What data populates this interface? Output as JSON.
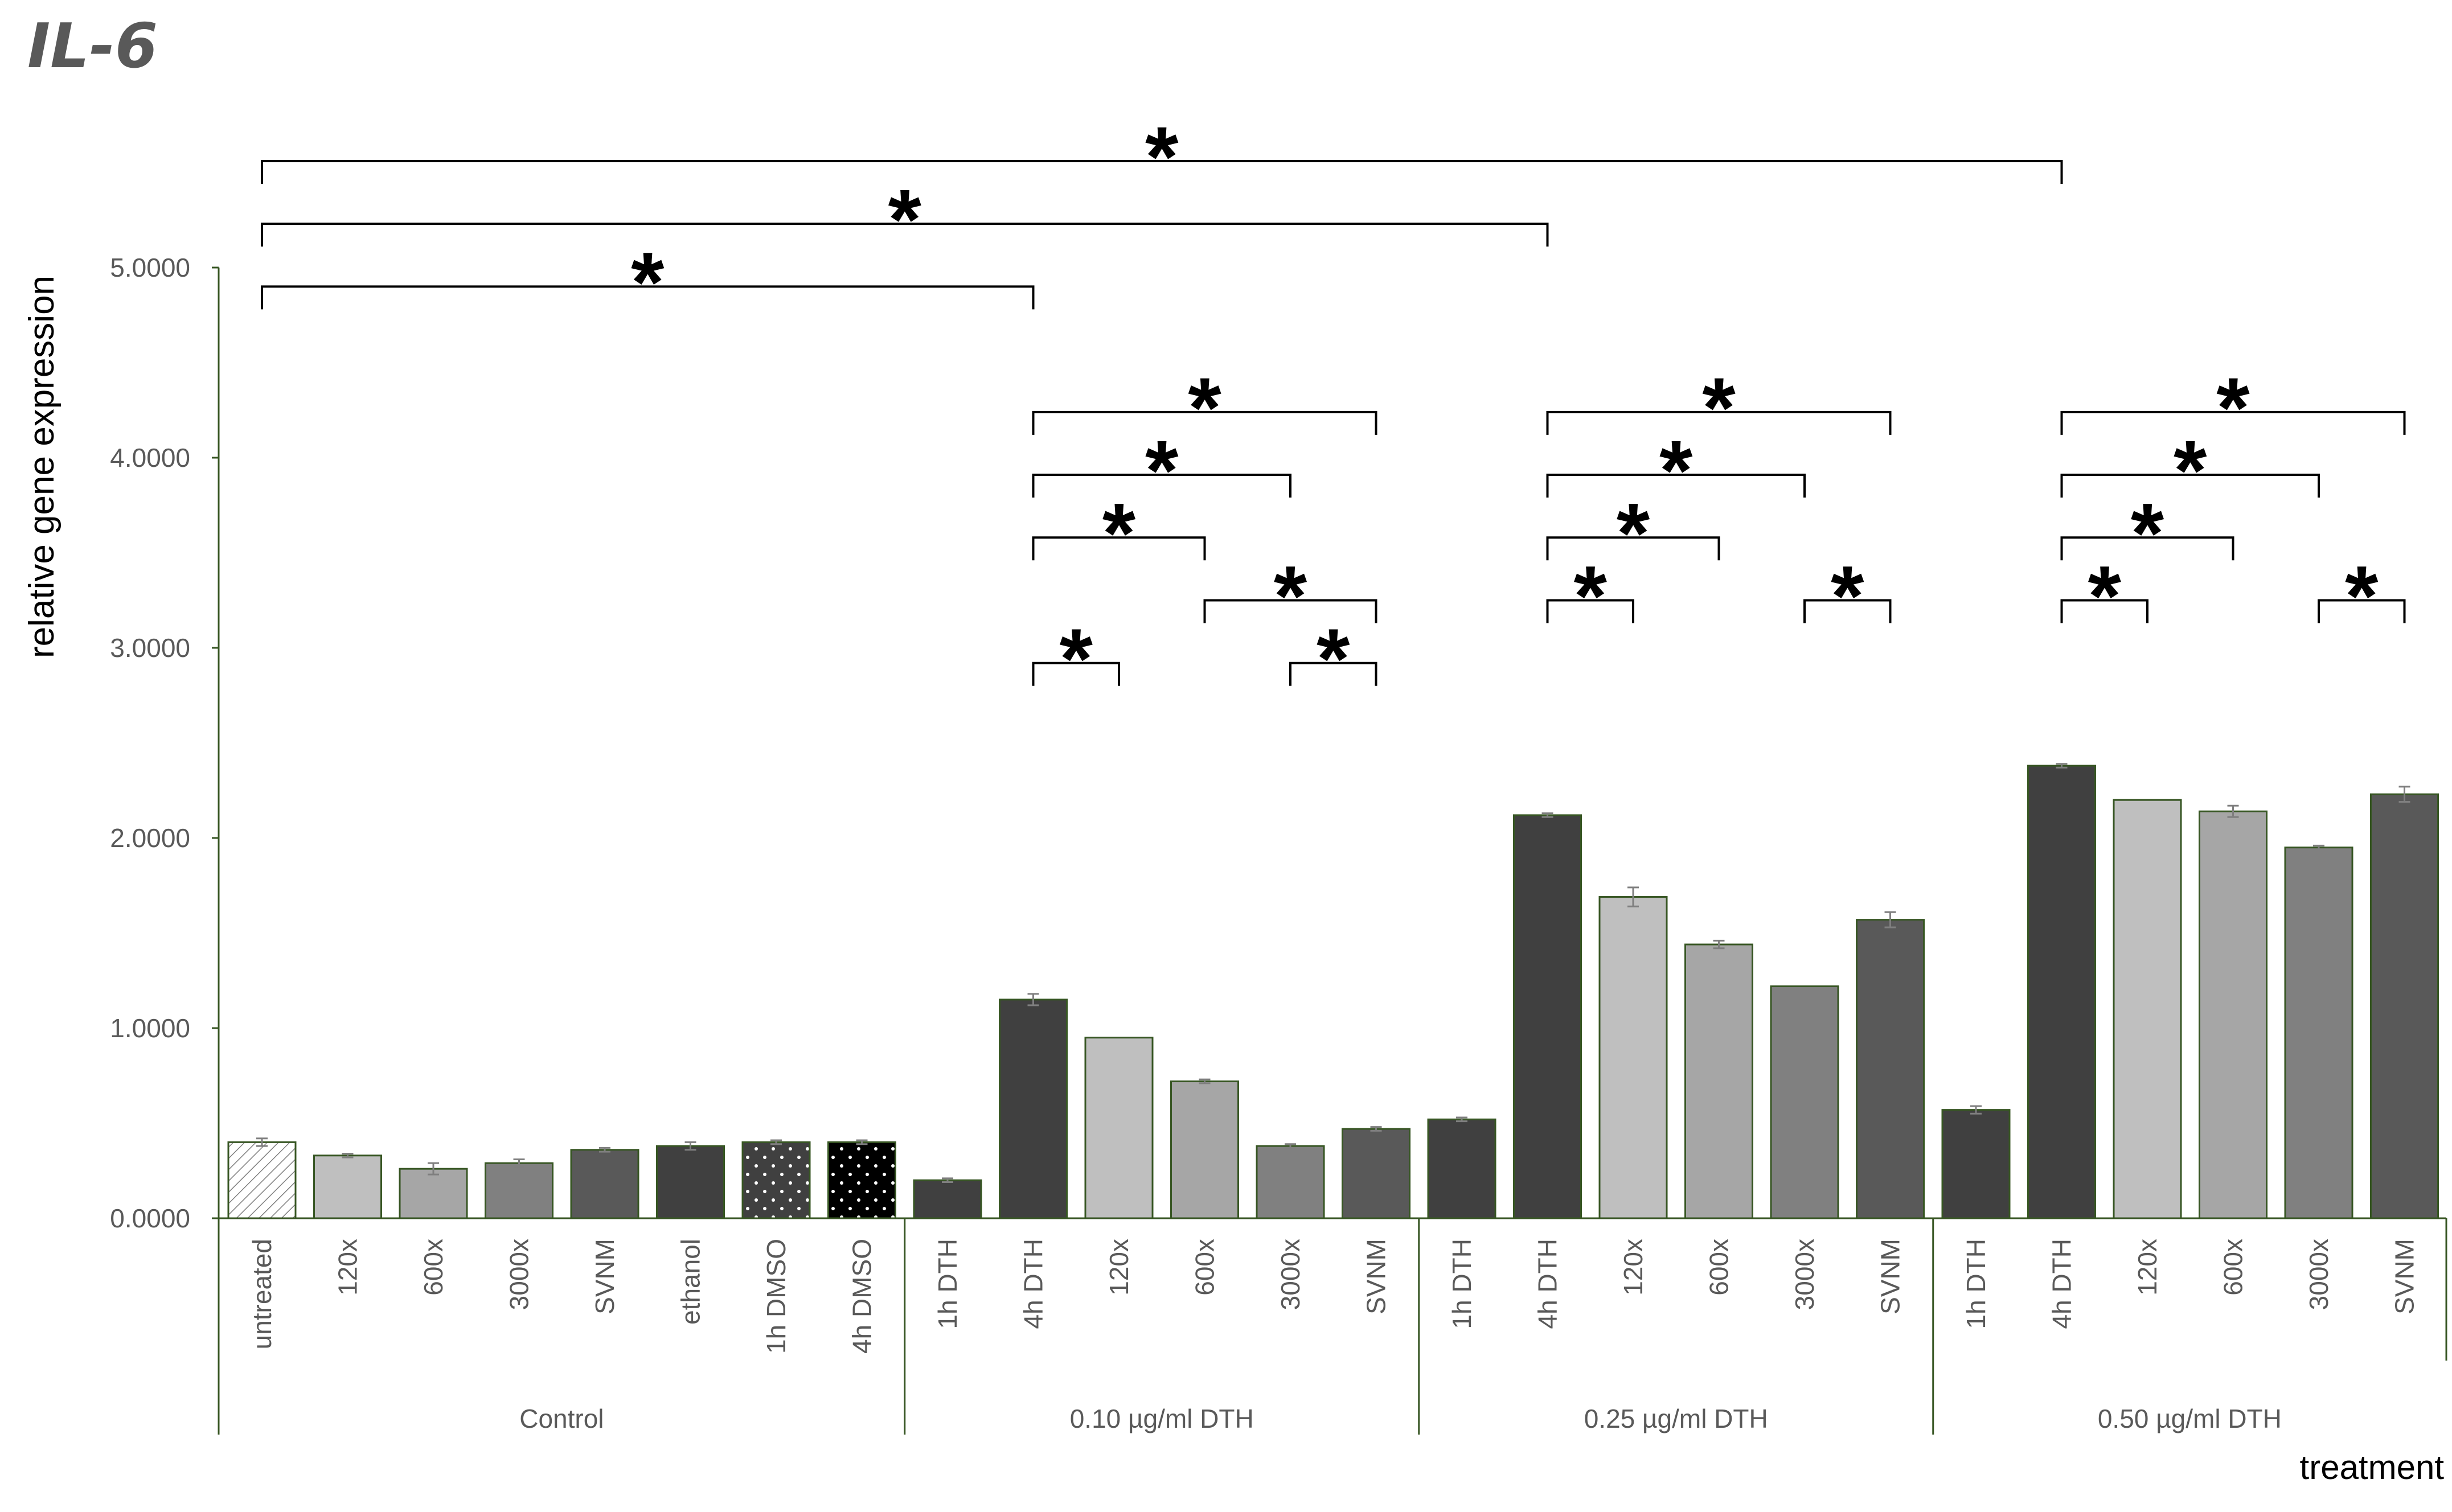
{
  "chart_data": {
    "type": "bar",
    "title": "IL-6",
    "ylabel": "relative gene expression",
    "xlabel": "treatment",
    "ylim": [
      0,
      5
    ],
    "yticks": [
      0,
      1,
      2,
      3,
      4,
      5
    ],
    "ytick_labels": [
      "0.0000",
      "1.0000",
      "2.0000",
      "3.0000",
      "4.0000",
      "5.0000"
    ],
    "grid": false,
    "legend": "none",
    "groups": [
      {
        "name": "Control",
        "categories": [
          "untreated",
          "120x",
          "600x",
          "3000x",
          "SVNM",
          "ethanol",
          "1h DMSO",
          "4h DMSO"
        ]
      },
      {
        "name": "0.10 µg/ml DTH",
        "categories": [
          "1h DTH",
          "4h DTH",
          "120x",
          "600x",
          "3000x",
          "SVNM"
        ]
      },
      {
        "name": "0.25 µg/ml DTH",
        "categories": [
          "1h DTH",
          "4h DTH",
          "120x",
          "600x",
          "3000x",
          "SVNM"
        ]
      },
      {
        "name": "0.50 µg/ml DTH",
        "categories": [
          "1h DTH",
          "4h DTH",
          "120x",
          "600x",
          "3000x",
          "SVNM"
        ]
      }
    ],
    "values": [
      0.4,
      0.33,
      0.26,
      0.29,
      0.36,
      0.38,
      0.4,
      0.4,
      0.2,
      1.15,
      0.95,
      0.72,
      0.38,
      0.47,
      0.52,
      2.12,
      1.69,
      1.44,
      1.22,
      1.57,
      0.57,
      2.38,
      2.2,
      2.14,
      1.95,
      2.23
    ],
    "errors": [
      0.02,
      0.01,
      0.03,
      0.02,
      0.01,
      0.02,
      0.01,
      0.01,
      0.01,
      0.03,
      0.0,
      0.01,
      0.01,
      0.01,
      0.01,
      0.01,
      0.05,
      0.02,
      0.0,
      0.04,
      0.02,
      0.01,
      0.0,
      0.03,
      0.01,
      0.04
    ],
    "bar_fills": [
      "hatch",
      "#bfbfbf",
      "#a6a6a6",
      "#808080",
      "#595959",
      "#404040",
      "dots-gray",
      "dots-black",
      "#404040",
      "#404040",
      "#bfbfbf",
      "#a6a6a6",
      "#808080",
      "#595959",
      "#404040",
      "#404040",
      "#bfbfbf",
      "#a6a6a6",
      "#808080",
      "#595959",
      "#404040",
      "#404040",
      "#bfbfbf",
      "#a6a6a6",
      "#808080",
      "#595959"
    ],
    "significance": [
      {
        "from": 0,
        "to": 21,
        "level": 5.56,
        "label": "*"
      },
      {
        "from": 0,
        "to": 15,
        "level": 5.23,
        "label": "*"
      },
      {
        "from": 0,
        "to": 9,
        "level": 4.9,
        "label": "*"
      },
      {
        "from": 9,
        "to": 13,
        "level": 4.24,
        "label": "*"
      },
      {
        "from": 9,
        "to": 12,
        "level": 3.91,
        "label": "*"
      },
      {
        "from": 9,
        "to": 11,
        "level": 3.58,
        "label": "*"
      },
      {
        "from": 11,
        "to": 13,
        "level": 3.25,
        "label": "*"
      },
      {
        "from": 9,
        "to": 10,
        "level": 2.92,
        "label": "*"
      },
      {
        "from": 12,
        "to": 13,
        "level": 2.92,
        "label": "*"
      },
      {
        "from": 15,
        "to": 19,
        "level": 4.24,
        "label": "*"
      },
      {
        "from": 15,
        "to": 18,
        "level": 3.91,
        "label": "*"
      },
      {
        "from": 15,
        "to": 17,
        "level": 3.58,
        "label": "*"
      },
      {
        "from": 15,
        "to": 16,
        "level": 3.25,
        "label": "*"
      },
      {
        "from": 18,
        "to": 19,
        "level": 3.25,
        "label": "*"
      },
      {
        "from": 21,
        "to": 25,
        "level": 4.24,
        "label": "*"
      },
      {
        "from": 21,
        "to": 24,
        "level": 3.91,
        "label": "*"
      },
      {
        "from": 21,
        "to": 23,
        "level": 3.58,
        "label": "*"
      },
      {
        "from": 21,
        "to": 22,
        "level": 3.25,
        "label": "*"
      },
      {
        "from": 24,
        "to": 25,
        "level": 3.25,
        "label": "*"
      }
    ],
    "colors": {
      "axis": "#375623",
      "bracket": "#000000",
      "text": "#595959",
      "error": "#7f7f7f"
    }
  }
}
